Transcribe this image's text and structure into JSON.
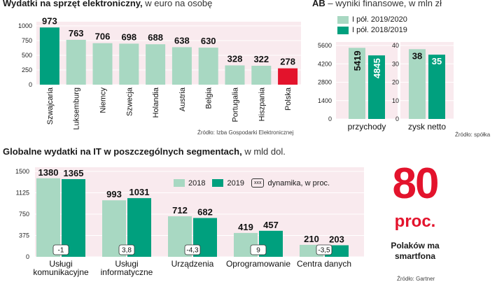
{
  "panel1": {
    "title": "Wydatki na sprzęt elektroniczny,",
    "subtitle": "w euro na osobę",
    "source": "Źródło: Izba Gospodarki Elektronicznej"
  },
  "panel2": {
    "title": "AB",
    "subtitle": "– wyniki finansowe, w mln zł",
    "source": "Źródło: spółka",
    "legend": [
      "I pół. 2019/2020",
      "I pół. 2018/2019"
    ]
  },
  "panel3": {
    "title": "Globalne wydatki na IT  w poszczególnych segmentach,",
    "subtitle": "w mld dol.",
    "legend": [
      "2018",
      "2019"
    ],
    "legend_growth_icon": "xxx",
    "legend_growth_label": "dynamika, w proc.",
    "source": "Źródło: Gartner"
  },
  "stat": {
    "value": "80",
    "unit": "proc.",
    "caption": "Polaków ma smartfona"
  },
  "colors": {
    "light": "#a8d8c2",
    "dark": "#00a07e",
    "highlight": "#e3132c",
    "panel_bg": "#f9eaee",
    "grid": "#ffffff"
  },
  "chart_data": [
    {
      "type": "bar",
      "title": "Wydatki na sprzęt elektroniczny, w euro na osobę",
      "categories": [
        "Szwajcaria",
        "Luksemburg",
        "Niemcy",
        "Szwecja",
        "Holandia",
        "Austria",
        "Belgia",
        "Portugalia",
        "Hiszpania",
        "Polska"
      ],
      "values": [
        973,
        763,
        706,
        698,
        688,
        638,
        630,
        328,
        322,
        278
      ],
      "highlight": [
        "Szwajcaria",
        "Polska"
      ],
      "ylim": [
        0,
        1000
      ],
      "yticks": [
        0,
        250,
        500,
        750,
        1000
      ],
      "grid": true
    },
    {
      "type": "bar",
      "title": "AB – wyniki finansowe, w mln zł",
      "panels": [
        {
          "category": "przychody",
          "ylim": [
            0,
            5600
          ],
          "yticks": [
            0,
            1400,
            2800,
            4200,
            5600
          ],
          "series": [
            {
              "name": "I pół. 2019/2020",
              "value": 5419
            },
            {
              "name": "I pół. 2018/2019",
              "value": 4845
            }
          ]
        },
        {
          "category": "zysk netto",
          "ylim": [
            0,
            40
          ],
          "yticks": [
            0,
            10,
            20,
            30,
            40
          ],
          "series": [
            {
              "name": "I pół. 2019/2020",
              "value": 38
            },
            {
              "name": "I pół. 2018/2019",
              "value": 35
            }
          ]
        }
      ],
      "grid": true
    },
    {
      "type": "bar",
      "title": "Globalne wydatki na IT w poszczególnych segmentach, w mld dol.",
      "categories": [
        "Usługi komunikacyjne",
        "Usługi informatyczne",
        "Urządzenia",
        "Oprogramowanie",
        "Centra danych"
      ],
      "category_lines": [
        [
          "Usługi",
          "komunikacyjne"
        ],
        [
          "Usługi",
          "informatyczne"
        ],
        [
          "Urządzenia"
        ],
        [
          "Oprogramowanie"
        ],
        [
          "Centra danych"
        ]
      ],
      "series": [
        {
          "name": "2018",
          "values": [
            1380,
            993,
            712,
            419,
            210
          ]
        },
        {
          "name": "2019",
          "values": [
            1365,
            1031,
            682,
            457,
            203
          ]
        }
      ],
      "growth": [
        "-1",
        "3,8",
        "-4,3",
        "9",
        "-3,5"
      ],
      "ylim": [
        0,
        1500
      ],
      "yticks": [
        0,
        375,
        750,
        1125,
        1500
      ],
      "grid": true
    }
  ]
}
